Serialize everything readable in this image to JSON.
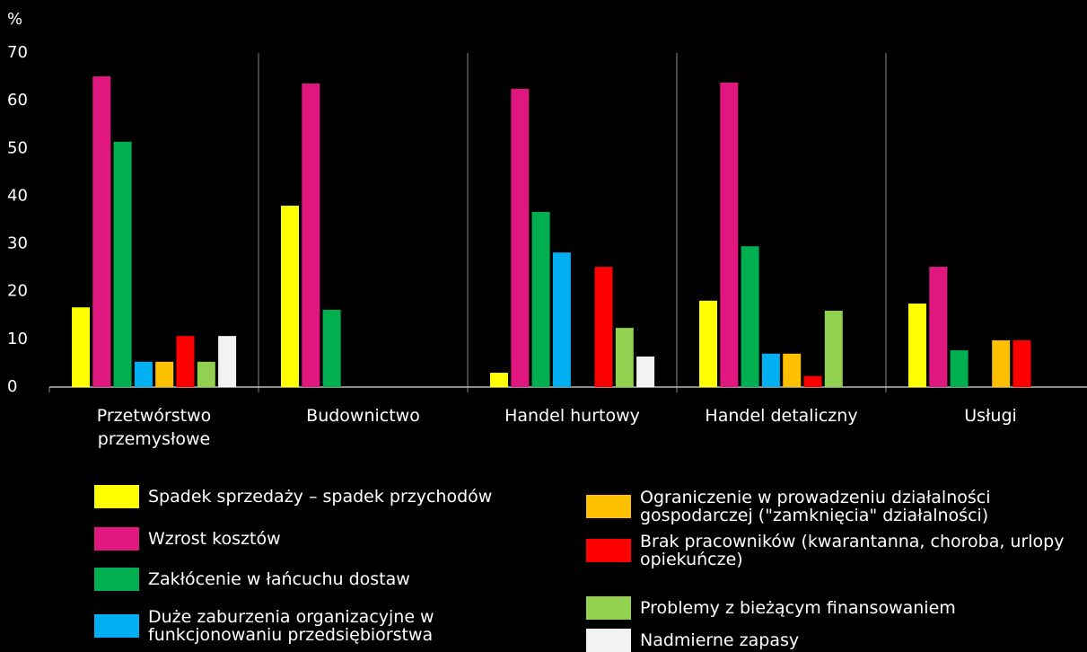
{
  "chart_data": {
    "type": "bar",
    "y_label": "%",
    "categories": [
      "Przetwórstwo przemysłowe",
      "Budownictwo",
      "Handel hurtowy",
      "Handel detaliczny",
      "Usługi"
    ],
    "series": [
      {
        "name": "Spadek sprzedaży – spadek przychodów",
        "color": "#ffff00",
        "values": [
          16.7,
          38.0,
          3.0,
          18.1,
          17.5
        ]
      },
      {
        "name": "Wzrost kosztów",
        "color": "#e0177e",
        "values": [
          65.1,
          63.6,
          62.5,
          63.8,
          25.2
        ]
      },
      {
        "name": "Zakłócenie w łańcuchu dostaw",
        "color": "#00b050",
        "values": [
          51.4,
          16.2,
          36.7,
          29.5,
          7.7
        ]
      },
      {
        "name": "Duże zaburzenia organizacyjne w funkcjonowaniu przedsiębiorstwa",
        "color": "#00b0f0",
        "values": [
          5.3,
          0,
          28.2,
          7.0,
          0
        ]
      },
      {
        "name": "Ograniczenie w prowadzeniu działalności gospodarczej (\"zamknięcia\" działalności)",
        "color": "#ffc000",
        "values": [
          5.3,
          0,
          0,
          7.0,
          9.8
        ]
      },
      {
        "name": "Brak pracowników (kwarantanna, choroba, urlopy opiekuńcze)",
        "color": "#ff0000",
        "values": [
          10.7,
          0,
          25.2,
          2.3,
          9.8
        ]
      },
      {
        "name": "Problemy z bieżącym finansowaniem",
        "color": "#92d050",
        "values": [
          5.3,
          0,
          12.4,
          16.0,
          0
        ]
      },
      {
        "name": "Nadmierne zapasy",
        "color": "#f2f2f2",
        "values": [
          10.7,
          0,
          6.4,
          0,
          0
        ]
      }
    ],
    "ylim": [
      0,
      70
    ],
    "yticks": [
      0,
      10,
      20,
      30,
      40,
      50,
      60,
      70
    ]
  }
}
